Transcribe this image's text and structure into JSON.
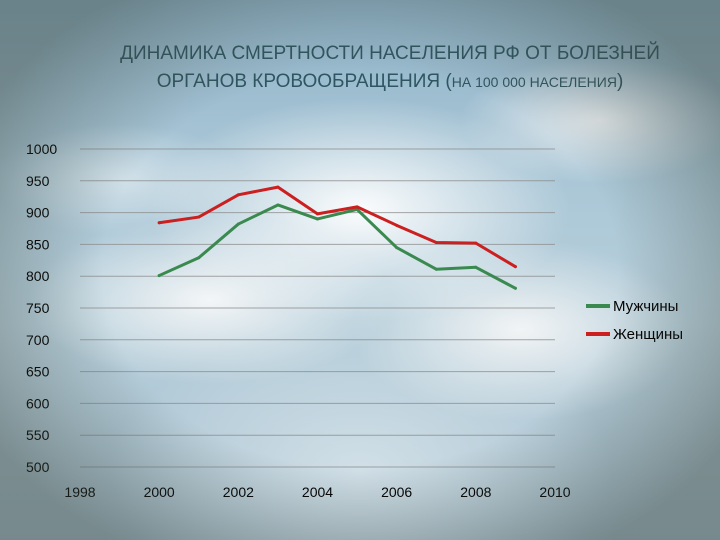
{
  "title": {
    "line1": "ДИНАМИКА СМЕРТНОСТИ НАСЕЛЕНИЯ РФ ОТ БОЛЕЗНЕЙ",
    "line2_main": "ОРГАНОВ КРОВООБРАЩЕНИЯ (",
    "line2_small": "НА 100 000 НАСЕЛЕНИЯ",
    "line2_end": ")"
  },
  "colors": {
    "men": "#3a8a4f",
    "women": "#cc1f1f",
    "title": "#2f5660"
  },
  "chart_data": {
    "type": "line",
    "title": "ДИНАМИКА СМЕРТНОСТИ НАСЕЛЕНИЯ РФ ОТ БОЛЕЗНЕЙ ОРГАНОВ КРОВООБРАЩЕНИЯ (НА 100 000 НАСЕЛЕНИЯ)",
    "x": [
      2000,
      2001,
      2002,
      2003,
      2004,
      2005,
      2006,
      2007,
      2008,
      2009
    ],
    "series": [
      {
        "name": "Мужчины",
        "color": "#3a8a4f",
        "values": [
          801,
          829,
          882,
          912,
          890,
          905,
          845,
          811,
          814,
          781
        ]
      },
      {
        "name": "Женщины",
        "color": "#cc1f1f",
        "values": [
          884,
          893,
          928,
          940,
          898,
          909,
          880,
          853,
          852,
          815
        ]
      }
    ],
    "xlim": [
      1998,
      2010
    ],
    "ylim": [
      500,
      1000
    ],
    "x_ticks": [
      "1998",
      "2000",
      "2002",
      "2004",
      "2006",
      "2008",
      "2010"
    ],
    "y_ticks": [
      "500",
      "550",
      "600",
      "650",
      "700",
      "750",
      "800",
      "850",
      "900",
      "950",
      "1000"
    ],
    "grid": true,
    "legend_position": "right"
  }
}
